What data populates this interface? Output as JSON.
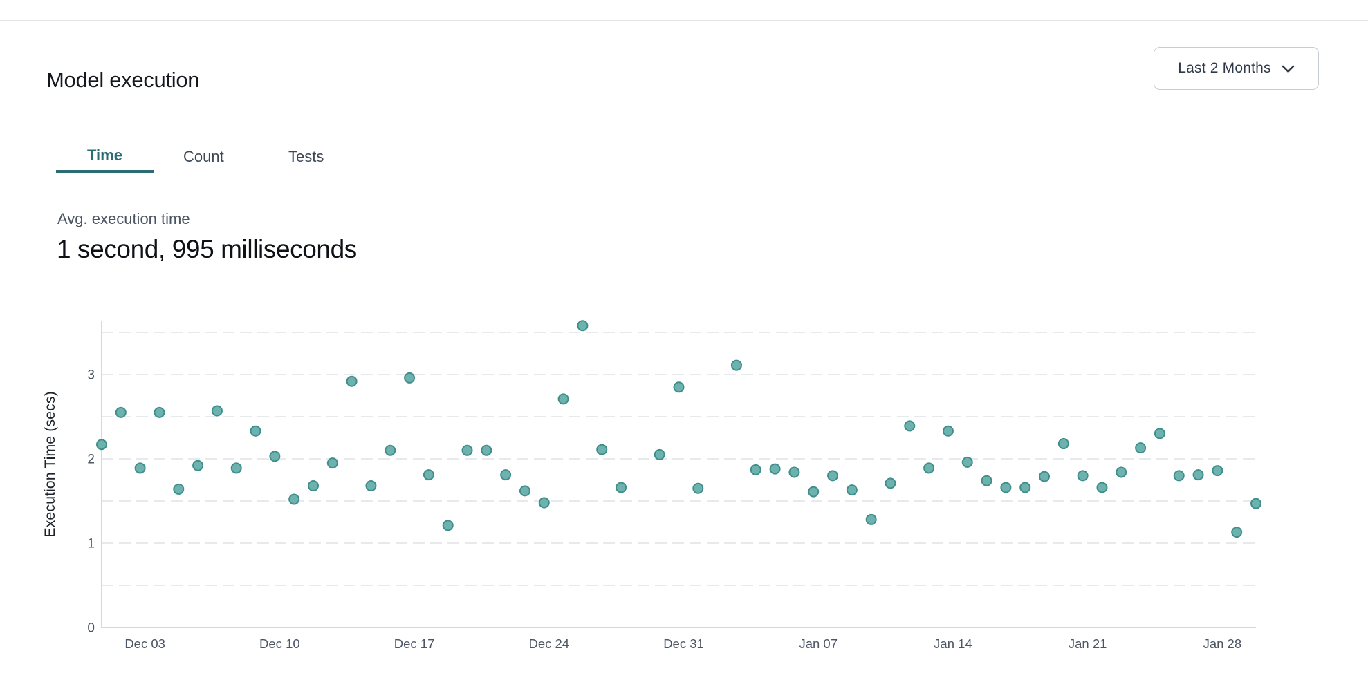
{
  "header": {
    "title": "Model execution",
    "date_range": {
      "value": "Last 2 Months",
      "icon": "chevron-down-icon"
    }
  },
  "tabs": [
    {
      "label": "Time",
      "active": true
    },
    {
      "label": "Count",
      "active": false
    },
    {
      "label": "Tests",
      "active": false
    }
  ],
  "metric": {
    "label": "Avg. execution time",
    "value": "1 second, 995 milliseconds"
  },
  "colors": {
    "accent_teal": "#2B6D73",
    "point_fill": "#6EB2AF",
    "point_stroke": "#3E8E8A",
    "grid_line": "#E7E9ED",
    "axis_line": "#D5D9DF",
    "axis_text": "#4B5563",
    "axis_title_text": "#1E232B"
  },
  "chart_data": {
    "type": "scatter",
    "title": "",
    "xlabel": "",
    "ylabel": "Execution Time (secs)",
    "legend": "none",
    "grid": "dashed horizontal lines every 0.5",
    "y_ticks": [
      0,
      1,
      2,
      3
    ],
    "ylim": [
      0,
      3.62
    ],
    "x_domain_days_from_dec01": [
      0,
      60
    ],
    "x_tick_labels": [
      "Dec 03",
      "Dec 10",
      "Dec 17",
      "Dec 24",
      "Dec 31",
      "Jan 07",
      "Jan 14",
      "Jan 21",
      "Jan 28"
    ],
    "x_tick_positions_days": [
      2,
      9,
      16,
      23,
      30,
      37,
      44,
      51,
      58
    ],
    "points": [
      {
        "date": "Dec 01",
        "day": 0,
        "secs": 2.17
      },
      {
        "date": "Dec 02",
        "day": 1,
        "secs": 2.55
      },
      {
        "date": "Dec 03",
        "day": 2,
        "secs": 1.89
      },
      {
        "date": "Dec 04",
        "day": 3,
        "secs": 2.55
      },
      {
        "date": "Dec 05",
        "day": 4,
        "secs": 1.64
      },
      {
        "date": "Dec 06",
        "day": 5,
        "secs": 1.92
      },
      {
        "date": "Dec 07",
        "day": 6,
        "secs": 2.57
      },
      {
        "date": "Dec 08",
        "day": 7,
        "secs": 1.89
      },
      {
        "date": "Dec 09",
        "day": 8,
        "secs": 2.33
      },
      {
        "date": "Dec 10",
        "day": 9,
        "secs": 2.03
      },
      {
        "date": "Dec 11",
        "day": 10,
        "secs": 1.52
      },
      {
        "date": "Dec 12",
        "day": 11,
        "secs": 1.68
      },
      {
        "date": "Dec 13",
        "day": 12,
        "secs": 1.95
      },
      {
        "date": "Dec 14",
        "day": 13,
        "secs": 2.92
      },
      {
        "date": "Dec 15",
        "day": 14,
        "secs": 1.68
      },
      {
        "date": "Dec 16",
        "day": 15,
        "secs": 2.1
      },
      {
        "date": "Dec 17",
        "day": 16,
        "secs": 2.96
      },
      {
        "date": "Dec 18",
        "day": 17,
        "secs": 1.81
      },
      {
        "date": "Dec 19",
        "day": 18,
        "secs": 1.21
      },
      {
        "date": "Dec 20",
        "day": 19,
        "secs": 2.1
      },
      {
        "date": "Dec 21",
        "day": 20,
        "secs": 2.1
      },
      {
        "date": "Dec 22",
        "day": 21,
        "secs": 1.81
      },
      {
        "date": "Dec 23",
        "day": 22,
        "secs": 1.62
      },
      {
        "date": "Dec 24",
        "day": 23,
        "secs": 1.48
      },
      {
        "date": "Dec 25",
        "day": 24,
        "secs": 2.71
      },
      {
        "date": "Dec 26",
        "day": 25,
        "secs": 3.58
      },
      {
        "date": "Dec 27",
        "day": 26,
        "secs": 2.11
      },
      {
        "date": "Dec 28",
        "day": 27,
        "secs": 1.66
      },
      {
        "date": "Dec 30",
        "day": 29,
        "secs": 2.05
      },
      {
        "date": "Dec 31",
        "day": 30,
        "secs": 2.85
      },
      {
        "date": "Jan 01",
        "day": 31,
        "secs": 1.65
      },
      {
        "date": "Jan 03",
        "day": 33,
        "secs": 3.11
      },
      {
        "date": "Jan 04",
        "day": 34,
        "secs": 1.87
      },
      {
        "date": "Jan 05",
        "day": 35,
        "secs": 1.88
      },
      {
        "date": "Jan 06",
        "day": 36,
        "secs": 1.84
      },
      {
        "date": "Jan 07",
        "day": 37,
        "secs": 1.61
      },
      {
        "date": "Jan 08",
        "day": 38,
        "secs": 1.8
      },
      {
        "date": "Jan 09",
        "day": 39,
        "secs": 1.63
      },
      {
        "date": "Jan 10",
        "day": 40,
        "secs": 1.28
      },
      {
        "date": "Jan 11",
        "day": 41,
        "secs": 1.71
      },
      {
        "date": "Jan 12",
        "day": 42,
        "secs": 2.39
      },
      {
        "date": "Jan 13",
        "day": 43,
        "secs": 1.89
      },
      {
        "date": "Jan 14",
        "day": 44,
        "secs": 2.33
      },
      {
        "date": "Jan 15",
        "day": 45,
        "secs": 1.96
      },
      {
        "date": "Jan 16",
        "day": 46,
        "secs": 1.74
      },
      {
        "date": "Jan 17",
        "day": 47,
        "secs": 1.66
      },
      {
        "date": "Jan 18",
        "day": 48,
        "secs": 1.66
      },
      {
        "date": "Jan 19",
        "day": 49,
        "secs": 1.79
      },
      {
        "date": "Jan 20",
        "day": 50,
        "secs": 2.18
      },
      {
        "date": "Jan 21",
        "day": 51,
        "secs": 1.8
      },
      {
        "date": "Jan 22",
        "day": 52,
        "secs": 1.66
      },
      {
        "date": "Jan 23",
        "day": 53,
        "secs": 1.84
      },
      {
        "date": "Jan 24",
        "day": 54,
        "secs": 2.13
      },
      {
        "date": "Jan 25",
        "day": 55,
        "secs": 2.3
      },
      {
        "date": "Jan 26",
        "day": 56,
        "secs": 1.8
      },
      {
        "date": "Jan 27",
        "day": 57,
        "secs": 1.81
      },
      {
        "date": "Jan 28",
        "day": 58,
        "secs": 1.86
      },
      {
        "date": "Jan 29",
        "day": 59,
        "secs": 1.13
      },
      {
        "date": "Jan 30",
        "day": 60,
        "secs": 1.47
      }
    ]
  }
}
